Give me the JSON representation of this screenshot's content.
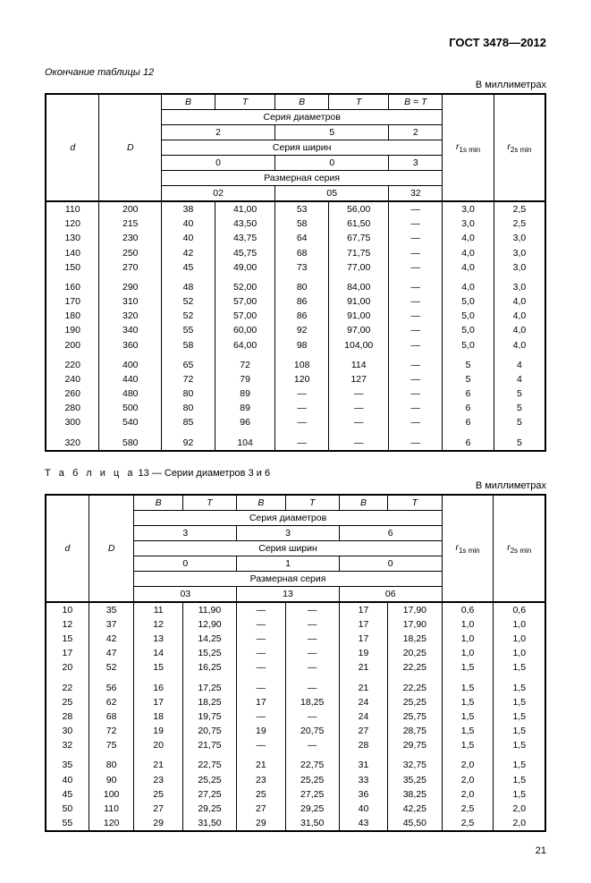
{
  "doc_title": "ГОСТ 3478—2012",
  "page_number": "21",
  "table12": {
    "caption": "Окончание таблицы 12",
    "units": "В миллиметрах",
    "hcols": {
      "d": "d",
      "D": "D",
      "B": "B",
      "T": "T",
      "BeqT": "B = T",
      "r1": "r",
      "r1sub": "1s min",
      "r2": "r",
      "r2sub": "2s min",
      "ser_diam": "Серия диаметров",
      "ser_shir": "Серия ширин",
      "razm": "Размерная серия",
      "v2": "2",
      "v5": "5",
      "v2b": "2",
      "v0a": "0",
      "v0b": "0",
      "v3": "3",
      "s02": "02",
      "s05": "05",
      "s32": "32"
    },
    "cw": {
      "d": 50,
      "D": 58,
      "B1": 50,
      "T1": 56,
      "B2": 50,
      "T2": 56,
      "BT": 50,
      "r1": 48,
      "r2": 48
    },
    "groups": [
      {
        "rows": [
          {
            "d": "110",
            "D": "200",
            "B1": "38",
            "T1": "41,00",
            "B2": "53",
            "T2": "56,00",
            "BT": "—",
            "r1": "3,0",
            "r2": "2,5"
          },
          {
            "d": "120",
            "D": "215",
            "B1": "40",
            "T1": "43,50",
            "B2": "58",
            "T2": "61,50",
            "BT": "—",
            "r1": "3,0",
            "r2": "2,5"
          },
          {
            "d": "130",
            "D": "230",
            "B1": "40",
            "T1": "43,75",
            "B2": "64",
            "T2": "67,75",
            "BT": "—",
            "r1": "4,0",
            "r2": "3,0"
          },
          {
            "d": "140",
            "D": "250",
            "B1": "42",
            "T1": "45,75",
            "B2": "68",
            "T2": "71,75",
            "BT": "—",
            "r1": "4,0",
            "r2": "3,0"
          },
          {
            "d": "150",
            "D": "270",
            "B1": "45",
            "T1": "49,00",
            "B2": "73",
            "T2": "77,00",
            "BT": "—",
            "r1": "4,0",
            "r2": "3,0"
          }
        ]
      },
      {
        "rows": [
          {
            "d": "160",
            "D": "290",
            "B1": "48",
            "T1": "52,00",
            "B2": "80",
            "T2": "84,00",
            "BT": "—",
            "r1": "4,0",
            "r2": "3,0"
          },
          {
            "d": "170",
            "D": "310",
            "B1": "52",
            "T1": "57,00",
            "B2": "86",
            "T2": "91,00",
            "BT": "—",
            "r1": "5,0",
            "r2": "4,0"
          },
          {
            "d": "180",
            "D": "320",
            "B1": "52",
            "T1": "57,00",
            "B2": "86",
            "T2": "91,00",
            "BT": "—",
            "r1": "5,0",
            "r2": "4,0"
          },
          {
            "d": "190",
            "D": "340",
            "B1": "55",
            "T1": "60,00",
            "B2": "92",
            "T2": "97,00",
            "BT": "—",
            "r1": "5,0",
            "r2": "4,0"
          },
          {
            "d": "200",
            "D": "360",
            "B1": "58",
            "T1": "64,00",
            "B2": "98",
            "T2": "104,00",
            "BT": "—",
            "r1": "5,0",
            "r2": "4,0"
          }
        ]
      },
      {
        "rows": [
          {
            "d": "220",
            "D": "400",
            "B1": "65",
            "T1": "72",
            "B2": "108",
            "T2": "114",
            "BT": "—",
            "r1": "5",
            "r2": "4"
          },
          {
            "d": "240",
            "D": "440",
            "B1": "72",
            "T1": "79",
            "B2": "120",
            "T2": "127",
            "BT": "—",
            "r1": "5",
            "r2": "4"
          },
          {
            "d": "260",
            "D": "480",
            "B1": "80",
            "T1": "89",
            "B2": "—",
            "T2": "—",
            "BT": "—",
            "r1": "6",
            "r2": "5"
          },
          {
            "d": "280",
            "D": "500",
            "B1": "80",
            "T1": "89",
            "B2": "—",
            "T2": "—",
            "BT": "—",
            "r1": "6",
            "r2": "5"
          },
          {
            "d": "300",
            "D": "540",
            "B1": "85",
            "T1": "96",
            "B2": "—",
            "T2": "—",
            "BT": "—",
            "r1": "6",
            "r2": "5"
          }
        ]
      },
      {
        "rows": [
          {
            "d": "320",
            "D": "580",
            "B1": "92",
            "T1": "104",
            "B2": "—",
            "T2": "—",
            "BT": "—",
            "r1": "6",
            "r2": "5"
          }
        ]
      }
    ]
  },
  "table13": {
    "caption_prefix": "Т а б л и ц а",
    "caption_rest": " 13 — Серии диаметров 3 и 6",
    "units": "В миллиметрах",
    "hcols": {
      "d": "d",
      "D": "D",
      "B": "B",
      "T": "T",
      "r1": "r",
      "r1sub": "1s min",
      "r2": "r",
      "r2sub": "2s min",
      "ser_diam": "Серия диаметров",
      "ser_shir": "Серия ширин",
      "razm": "Размерная серия",
      "v3": "3",
      "v3b": "3",
      "v6": "6",
      "v0a": "0",
      "v1": "1",
      "v0b": "0",
      "s03": "03",
      "s13": "13",
      "s06": "06"
    },
    "cw": {
      "d": 40,
      "D": 42,
      "B1": 45,
      "T1": 50,
      "B2": 45,
      "T2": 50,
      "B3": 45,
      "T3": 50,
      "r1": 48,
      "r2": 48
    },
    "groups": [
      {
        "rows": [
          {
            "d": "10",
            "D": "35",
            "B1": "11",
            "T1": "11,90",
            "B2": "—",
            "T2": "—",
            "B3": "17",
            "T3": "17,90",
            "r1": "0,6",
            "r2": "0,6"
          },
          {
            "d": "12",
            "D": "37",
            "B1": "12",
            "T1": "12,90",
            "B2": "—",
            "T2": "—",
            "B3": "17",
            "T3": "17,90",
            "r1": "1,0",
            "r2": "1,0"
          },
          {
            "d": "15",
            "D": "42",
            "B1": "13",
            "T1": "14,25",
            "B2": "—",
            "T2": "—",
            "B3": "17",
            "T3": "18,25",
            "r1": "1,0",
            "r2": "1,0"
          },
          {
            "d": "17",
            "D": "47",
            "B1": "14",
            "T1": "15,25",
            "B2": "—",
            "T2": "—",
            "B3": "19",
            "T3": "20,25",
            "r1": "1,0",
            "r2": "1,0"
          },
          {
            "d": "20",
            "D": "52",
            "B1": "15",
            "T1": "16,25",
            "B2": "—",
            "T2": "—",
            "B3": "21",
            "T3": "22,25",
            "r1": "1,5",
            "r2": "1,5"
          }
        ]
      },
      {
        "rows": [
          {
            "d": "22",
            "D": "56",
            "B1": "16",
            "T1": "17,25",
            "B2": "—",
            "T2": "—",
            "B3": "21",
            "T3": "22,25",
            "r1": "1,5",
            "r2": "1,5"
          },
          {
            "d": "25",
            "D": "62",
            "B1": "17",
            "T1": "18,25",
            "B2": "17",
            "T2": "18,25",
            "B3": "24",
            "T3": "25,25",
            "r1": "1,5",
            "r2": "1,5"
          },
          {
            "d": "28",
            "D": "68",
            "B1": "18",
            "T1": "19,75",
            "B2": "—",
            "T2": "—",
            "B3": "24",
            "T3": "25,75",
            "r1": "1,5",
            "r2": "1,5"
          },
          {
            "d": "30",
            "D": "72",
            "B1": "19",
            "T1": "20,75",
            "B2": "19",
            "T2": "20,75",
            "B3": "27",
            "T3": "28,75",
            "r1": "1,5",
            "r2": "1,5"
          },
          {
            "d": "32",
            "D": "75",
            "B1": "20",
            "T1": "21,75",
            "B2": "—",
            "T2": "—",
            "B3": "28",
            "T3": "29,75",
            "r1": "1,5",
            "r2": "1,5"
          }
        ]
      },
      {
        "rows": [
          {
            "d": "35",
            "D": "80",
            "B1": "21",
            "T1": "22,75",
            "B2": "21",
            "T2": "22,75",
            "B3": "31",
            "T3": "32,75",
            "r1": "2,0",
            "r2": "1,5"
          },
          {
            "d": "40",
            "D": "90",
            "B1": "23",
            "T1": "25,25",
            "B2": "23",
            "T2": "25,25",
            "B3": "33",
            "T3": "35,25",
            "r1": "2,0",
            "r2": "1,5"
          },
          {
            "d": "45",
            "D": "100",
            "B1": "25",
            "T1": "27,25",
            "B2": "25",
            "T2": "27,25",
            "B3": "36",
            "T3": "38,25",
            "r1": "2,0",
            "r2": "1,5"
          },
          {
            "d": "50",
            "D": "110",
            "B1": "27",
            "T1": "29,25",
            "B2": "27",
            "T2": "29,25",
            "B3": "40",
            "T3": "42,25",
            "r1": "2,5",
            "r2": "2,0"
          },
          {
            "d": "55",
            "D": "120",
            "B1": "29",
            "T1": "31,50",
            "B2": "29",
            "T2": "31,50",
            "B3": "43",
            "T3": "45,50",
            "r1": "2,5",
            "r2": "2,0"
          }
        ]
      }
    ]
  }
}
